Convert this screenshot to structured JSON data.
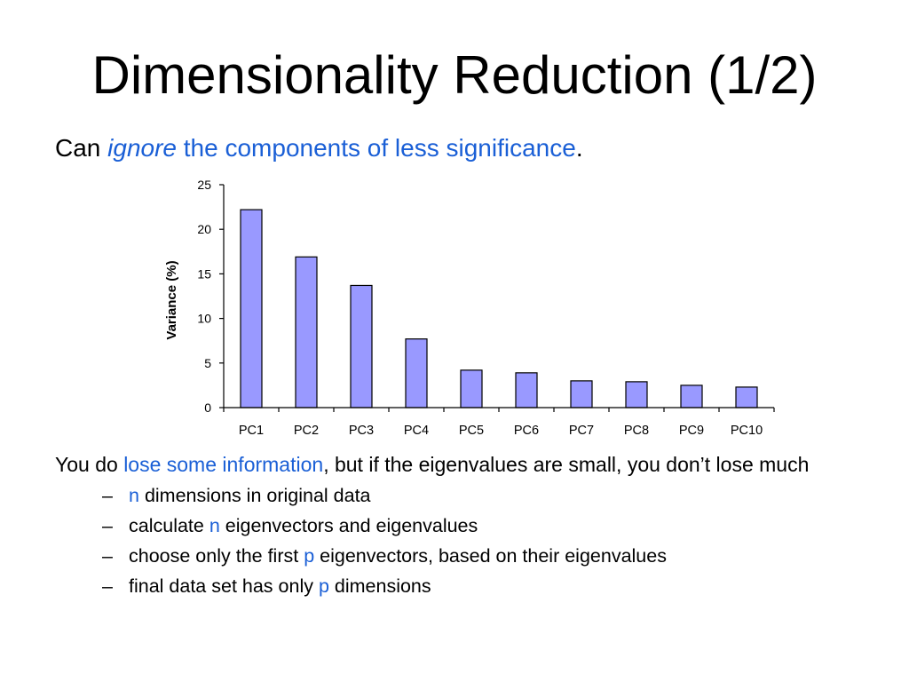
{
  "slide": {
    "title": "Dimensionality Reduction (1/2)",
    "intro": {
      "prefix": "Can ",
      "emphasis": "ignore",
      "highlight": " the components of less significance",
      "suffix": "."
    },
    "body": {
      "part1": "You do ",
      "highlight": "lose some information",
      "part2": ", but if the eigenvalues are small, you don’t lose much"
    },
    "bullets": [
      {
        "dash": "–",
        "pre": "",
        "var": "n",
        "post": " dimensions in original data"
      },
      {
        "dash": "–",
        "pre": "calculate ",
        "var": "n",
        "post": " eigenvectors and eigenvalues"
      },
      {
        "dash": "–",
        "pre": "choose only the first ",
        "var": "p",
        "post": " eigenvectors, based on their eigenvalues"
      },
      {
        "dash": "–",
        "pre": "final data set has only ",
        "var": "p",
        "post": " dimensions"
      }
    ]
  },
  "colors": {
    "accent_text": "#1a5fd6",
    "bar_fill": "#9999ff",
    "bar_stroke": "#000000"
  },
  "chart_data": {
    "type": "bar",
    "title": "",
    "xlabel": "",
    "ylabel": "Variance (%)",
    "categories": [
      "PC1",
      "PC2",
      "PC3",
      "PC4",
      "PC5",
      "PC6",
      "PC7",
      "PC8",
      "PC9",
      "PC10"
    ],
    "values": [
      22.2,
      16.9,
      13.7,
      7.7,
      4.2,
      3.9,
      3.0,
      2.9,
      2.5,
      2.3
    ],
    "ylim": [
      0,
      25
    ],
    "yticks": [
      "0",
      "5",
      "10",
      "15",
      "20",
      "25"
    ],
    "grid": false,
    "legend": "none"
  }
}
